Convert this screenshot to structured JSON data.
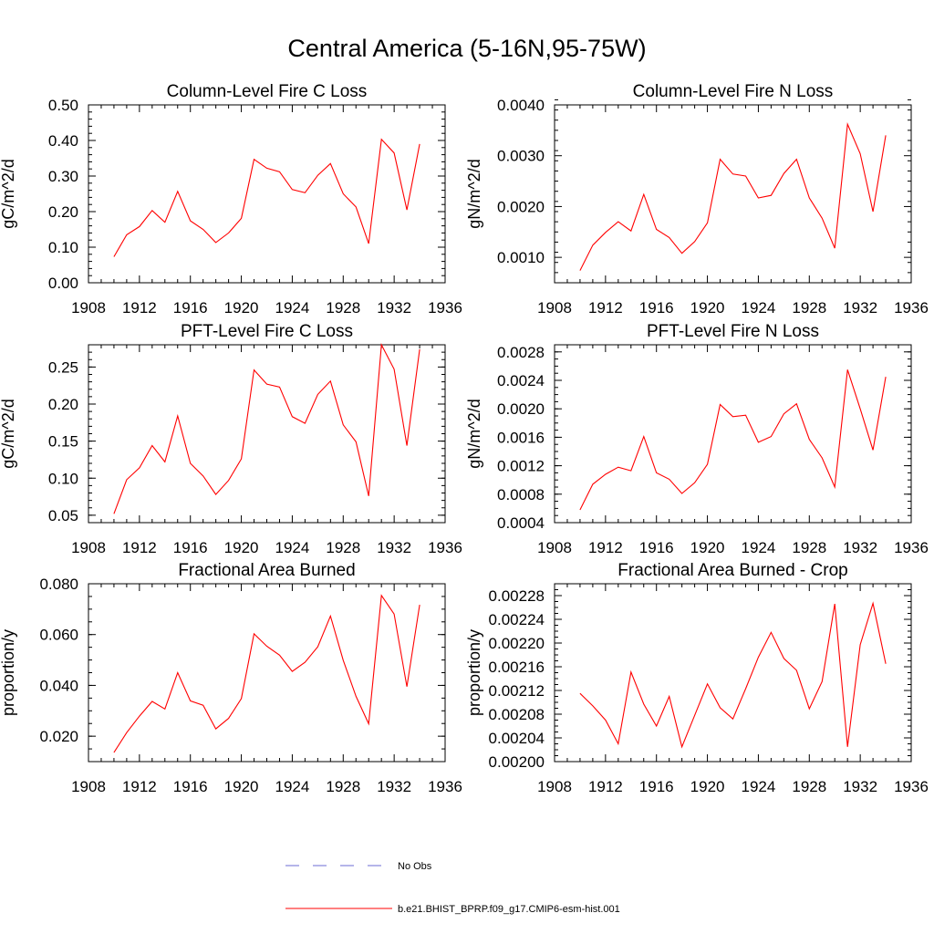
{
  "title": "Central America (5-16N,95-75W)",
  "chart_data": [
    {
      "type": "line",
      "title": "Column-Level Fire C Loss",
      "ylabel": "gC/m^2/d",
      "xlim": [
        1908,
        1936
      ],
      "x_ticks": [
        "1908",
        "1912",
        "1916",
        "1920",
        "1924",
        "1928",
        "1932",
        "1936"
      ],
      "ylim": [
        0.0,
        0.5
      ],
      "y_ticks": [
        "0.00",
        "0.10",
        "0.20",
        "0.30",
        "0.40",
        "0.50"
      ],
      "y_minor_step": 0.02,
      "x": [
        1910,
        1911,
        1912,
        1913,
        1914,
        1915,
        1916,
        1917,
        1918,
        1919,
        1920,
        1921,
        1922,
        1923,
        1924,
        1925,
        1926,
        1927,
        1928,
        1929,
        1930,
        1931,
        1932,
        1933,
        1934
      ],
      "series": [
        {
          "name": "b.e21.BHIST_BPRP.f09_g17.CMIP6-esm-hist.001",
          "color": "#ff0000",
          "values": [
            0.073,
            0.135,
            0.158,
            0.203,
            0.17,
            0.257,
            0.174,
            0.15,
            0.113,
            0.14,
            0.181,
            0.347,
            0.322,
            0.312,
            0.262,
            0.253,
            0.302,
            0.335,
            0.25,
            0.213,
            0.11,
            0.403,
            0.365,
            0.205,
            0.39
          ]
        }
      ]
    },
    {
      "type": "line",
      "title": "Column-Level Fire N Loss",
      "ylabel": "gN/m^2/d",
      "xlim": [
        1908,
        1936
      ],
      "x_ticks": [
        "1908",
        "1912",
        "1916",
        "1920",
        "1924",
        "1928",
        "1932",
        "1936"
      ],
      "ylim": [
        0.0005,
        0.004
      ],
      "y_ticks": [
        "0.0010",
        "0.0020",
        "0.0030",
        "0.0040"
      ],
      "y_tick_values": [
        0.001,
        0.002,
        0.003,
        0.004
      ],
      "y_minor_step": 0.0002,
      "x": [
        1910,
        1911,
        1912,
        1913,
        1914,
        1915,
        1916,
        1917,
        1918,
        1919,
        1920,
        1921,
        1922,
        1923,
        1924,
        1925,
        1926,
        1927,
        1928,
        1929,
        1930,
        1931,
        1932,
        1933,
        1934
      ],
      "series": [
        {
          "name": "b.e21.BHIST_BPRP.f09_g17.CMIP6-esm-hist.001",
          "color": "#ff0000",
          "values": [
            0.00074,
            0.00124,
            0.00149,
            0.0017,
            0.00152,
            0.00224,
            0.00155,
            0.00139,
            0.00108,
            0.00131,
            0.00168,
            0.00293,
            0.00264,
            0.0026,
            0.00217,
            0.00222,
            0.00265,
            0.00293,
            0.00217,
            0.00177,
            0.00118,
            0.00362,
            0.00304,
            0.0019,
            0.0034
          ]
        }
      ]
    },
    {
      "type": "line",
      "title": "PFT-Level Fire C Loss",
      "ylabel": "gC/m^2/d",
      "xlim": [
        1908,
        1936
      ],
      "x_ticks": [
        "1908",
        "1912",
        "1916",
        "1920",
        "1924",
        "1928",
        "1932",
        "1936"
      ],
      "ylim": [
        0.04,
        0.28
      ],
      "y_ticks": [
        "0.05",
        "0.10",
        "0.15",
        "0.20",
        "0.25"
      ],
      "y_tick_values": [
        0.05,
        0.1,
        0.15,
        0.2,
        0.25
      ],
      "y_minor_step": 0.01,
      "x": [
        1910,
        1911,
        1912,
        1913,
        1914,
        1915,
        1916,
        1917,
        1918,
        1919,
        1920,
        1921,
        1922,
        1923,
        1924,
        1925,
        1926,
        1927,
        1928,
        1929,
        1930,
        1931,
        1932,
        1933,
        1934
      ],
      "series": [
        {
          "name": "b.e21.BHIST_BPRP.f09_g17.CMIP6-esm-hist.001",
          "color": "#ff0000",
          "values": [
            0.052,
            0.098,
            0.114,
            0.144,
            0.122,
            0.184,
            0.12,
            0.103,
            0.078,
            0.097,
            0.126,
            0.246,
            0.227,
            0.223,
            0.183,
            0.174,
            0.213,
            0.231,
            0.172,
            0.149,
            0.076,
            0.28,
            0.247,
            0.144,
            0.274
          ]
        }
      ]
    },
    {
      "type": "line",
      "title": "PFT-Level Fire N Loss",
      "ylabel": "gN/m^2/d",
      "xlim": [
        1908,
        1936
      ],
      "x_ticks": [
        "1908",
        "1912",
        "1916",
        "1920",
        "1924",
        "1928",
        "1932",
        "1936"
      ],
      "ylim": [
        0.0004,
        0.0029
      ],
      "y_ticks": [
        "0.0004",
        "0.0008",
        "0.0012",
        "0.0016",
        "0.0020",
        "0.0024",
        "0.0028"
      ],
      "y_tick_values": [
        0.0004,
        0.0008,
        0.0012,
        0.0016,
        0.002,
        0.0024,
        0.0028
      ],
      "y_minor_step": 0.0001,
      "x": [
        1910,
        1911,
        1912,
        1913,
        1914,
        1915,
        1916,
        1917,
        1918,
        1919,
        1920,
        1921,
        1922,
        1923,
        1924,
        1925,
        1926,
        1927,
        1928,
        1929,
        1930,
        1931,
        1932,
        1933,
        1934
      ],
      "series": [
        {
          "name": "b.e21.BHIST_BPRP.f09_g17.CMIP6-esm-hist.001",
          "color": "#ff0000",
          "values": [
            0.00058,
            0.00094,
            0.00108,
            0.00118,
            0.00113,
            0.00161,
            0.0011,
            0.00101,
            0.00081,
            0.00096,
            0.00122,
            0.00206,
            0.00189,
            0.00191,
            0.00153,
            0.00161,
            0.00193,
            0.00207,
            0.00157,
            0.00131,
            0.0009,
            0.00255,
            0.002,
            0.00142,
            0.00245
          ]
        }
      ]
    },
    {
      "type": "line",
      "title": "Fractional Area Burned",
      "ylabel": "proportion/y",
      "xlim": [
        1908,
        1936
      ],
      "x_ticks": [
        "1908",
        "1912",
        "1916",
        "1920",
        "1924",
        "1928",
        "1932",
        "1936"
      ],
      "ylim": [
        0.01,
        0.08
      ],
      "y_ticks": [
        "0.020",
        "0.040",
        "0.060",
        "0.080"
      ],
      "y_tick_values": [
        0.02,
        0.04,
        0.06,
        0.08
      ],
      "y_minor_step": 0.005,
      "x": [
        1910,
        1911,
        1912,
        1913,
        1914,
        1915,
        1916,
        1917,
        1918,
        1919,
        1920,
        1921,
        1922,
        1923,
        1924,
        1925,
        1926,
        1927,
        1928,
        1929,
        1930,
        1931,
        1932,
        1933,
        1934
      ],
      "series": [
        {
          "name": "b.e21.BHIST_BPRP.f09_g17.CMIP6-esm-hist.001",
          "color": "#ff0000",
          "values": [
            0.0136,
            0.0214,
            0.0279,
            0.0337,
            0.0307,
            0.045,
            0.0339,
            0.0322,
            0.0229,
            0.027,
            0.0348,
            0.0603,
            0.0554,
            0.0519,
            0.0455,
            0.0491,
            0.0552,
            0.0673,
            0.0499,
            0.0357,
            0.0249,
            0.0754,
            0.0681,
            0.0395,
            0.0717
          ]
        }
      ]
    },
    {
      "type": "line",
      "title": "Fractional Area Burned - Crop",
      "ylabel": "proportion/y",
      "xlim": [
        1908,
        1936
      ],
      "x_ticks": [
        "1908",
        "1912",
        "1916",
        "1920",
        "1924",
        "1928",
        "1932",
        "1936"
      ],
      "ylim": [
        0.002,
        0.0023
      ],
      "y_ticks": [
        "0.00200",
        "0.00204",
        "0.00208",
        "0.00212",
        "0.00216",
        "0.00220",
        "0.00224",
        "0.00228"
      ],
      "y_tick_values": [
        0.002,
        0.00204,
        0.00208,
        0.00212,
        0.00216,
        0.0022,
        0.00224,
        0.00228
      ],
      "y_minor_step": 1e-05,
      "x": [
        1910,
        1911,
        1912,
        1913,
        1914,
        1915,
        1916,
        1917,
        1918,
        1919,
        1920,
        1921,
        1922,
        1923,
        1924,
        1925,
        1926,
        1927,
        1928,
        1929,
        1930,
        1931,
        1932,
        1933,
        1934
      ],
      "series": [
        {
          "name": "b.e21.BHIST_BPRP.f09_g17.CMIP6-esm-hist.001",
          "color": "#ff0000",
          "values": [
            0.002115,
            0.002094,
            0.00207,
            0.00203,
            0.002151,
            0.002097,
            0.00206,
            0.00211,
            0.002025,
            0.002078,
            0.002131,
            0.002091,
            0.002072,
            0.002123,
            0.002176,
            0.002218,
            0.002174,
            0.002154,
            0.002089,
            0.002135,
            0.002266,
            0.002025,
            0.002197,
            0.002267,
            0.002165
          ]
        }
      ]
    }
  ],
  "legend": {
    "entries": [
      {
        "label": "No Obs",
        "color": "#6b6bd6",
        "style": "dashed"
      },
      {
        "label": "b.e21.BHIST_BPRP.f09_g17.CMIP6-esm-hist.001",
        "color": "#ff0000",
        "style": "solid"
      }
    ]
  }
}
